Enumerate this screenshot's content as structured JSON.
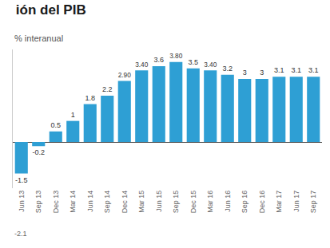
{
  "chart_data": {
    "type": "bar",
    "title": "ión del PIB",
    "subtitle": "% interanual",
    "categories": [
      "Jun 13",
      "Sep 13",
      "Dec 13",
      "Mar 14",
      "Jun 14",
      "Sep 14",
      "Dec 14",
      "Mar 15",
      "Jun 15",
      "Sep 15",
      "Dec 15",
      "Mar 16",
      "Jun 16",
      "Sep 16",
      "Dec 16",
      "Mar 17",
      "Jun 17",
      "Sep 17"
    ],
    "values": [
      -1.5,
      -0.2,
      0.5,
      1.0,
      1.8,
      2.2,
      2.9,
      3.4,
      3.6,
      3.8,
      3.5,
      3.4,
      3.2,
      3.0,
      3.0,
      3.1,
      3.1,
      3.1
    ],
    "value_labels": [
      "-1.5",
      "-0.2",
      "0.5",
      "1",
      "1.8",
      "2.2",
      "2.90",
      "3.40",
      "3.6",
      "3.80",
      "3.5",
      "3.40",
      "3.2",
      "3",
      "3",
      "3.1",
      "3.1",
      "3.1"
    ],
    "data_labels": true,
    "color": "#2e9fd4",
    "ylim": [
      -2.2,
      4.4
    ],
    "yticks": [],
    "tick_labels": "x",
    "grid": false,
    "annotations": [
      "-2.1"
    ]
  }
}
